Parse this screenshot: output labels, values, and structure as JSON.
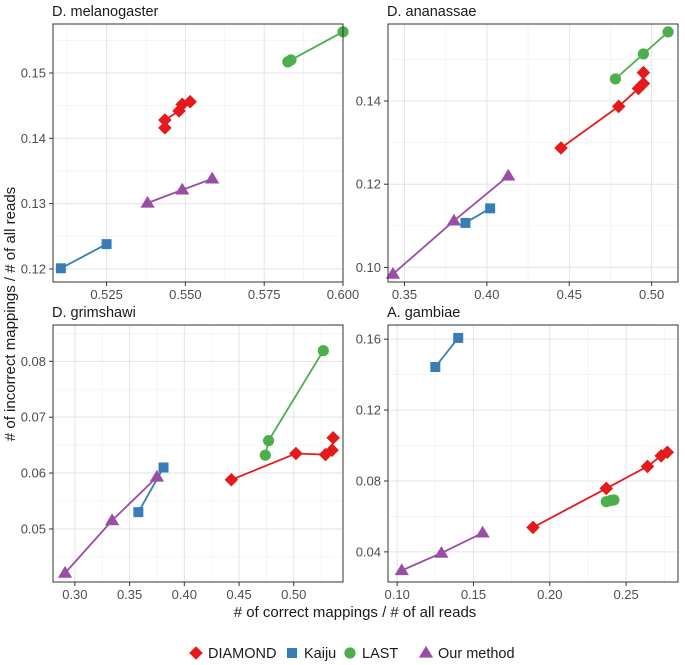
{
  "figure": {
    "x_axis_label": "# of correct mappings / # of all reads",
    "y_axis_label": "# of incorrect mappings / # of all reads"
  },
  "legend": {
    "position": "bottom",
    "items": [
      {
        "label": "DIAMOND",
        "marker": "diamond",
        "color": "#e41a1c"
      },
      {
        "label": "Kaiju",
        "marker": "square",
        "color": "#377eb8"
      },
      {
        "label": "LAST",
        "marker": "circle",
        "color": "#4daf4a"
      },
      {
        "label": "Our method",
        "marker": "triangle",
        "color": "#984ea3"
      }
    ]
  },
  "chart_data": [
    {
      "type": "scatter",
      "title": "D. melanogaster",
      "xlim": [
        0.508,
        0.6
      ],
      "ylim": [
        0.118,
        0.1575
      ],
      "xticks": [
        0.525,
        0.55,
        0.575,
        0.6
      ],
      "xtick_labels": [
        "0.525",
        "0.550",
        "0.575",
        "0.600"
      ],
      "yticks": [
        0.12,
        0.13,
        0.14,
        0.15
      ],
      "ytick_labels": [
        "0.12",
        "0.13",
        "0.14",
        "0.15"
      ],
      "series": [
        {
          "name": "DIAMOND",
          "points": [
            [
              0.5435,
              0.1416
            ],
            [
              0.5435,
              0.1428
            ],
            [
              0.548,
              0.1442
            ],
            [
              0.549,
              0.1452
            ],
            [
              0.5515,
              0.1456
            ]
          ]
        },
        {
          "name": "Kaiju",
          "points": [
            [
              0.5105,
              0.1201
            ],
            [
              0.525,
              0.1238
            ]
          ]
        },
        {
          "name": "LAST",
          "points": [
            [
              0.5825,
              0.1517
            ],
            [
              0.5835,
              0.152
            ],
            [
              0.6,
              0.1563
            ]
          ]
        },
        {
          "name": "Our method",
          "points": [
            [
              0.538,
              0.1301
            ],
            [
              0.549,
              0.1321
            ],
            [
              0.5585,
              0.1338
            ]
          ]
        }
      ]
    },
    {
      "type": "scatter",
      "title": "D. ananassae",
      "xlim": [
        0.34,
        0.516
      ],
      "ylim": [
        0.0965,
        0.1585
      ],
      "xticks": [
        0.35,
        0.4,
        0.45,
        0.5
      ],
      "xtick_labels": [
        "0.35",
        "0.40",
        "0.45",
        "0.50"
      ],
      "yticks": [
        0.1,
        0.12,
        0.14
      ],
      "ytick_labels": [
        "0.10",
        "0.12",
        "0.14"
      ],
      "series": [
        {
          "name": "DIAMOND",
          "points": [
            [
              0.445,
              0.1287
            ],
            [
              0.48,
              0.1387
            ],
            [
              0.492,
              0.143
            ],
            [
              0.495,
              0.1442
            ],
            [
              0.495,
              0.1468
            ]
          ]
        },
        {
          "name": "Kaiju",
          "points": [
            [
              0.387,
              0.1107
            ],
            [
              0.402,
              0.1142
            ]
          ]
        },
        {
          "name": "LAST",
          "points": [
            [
              0.478,
              0.1453
            ],
            [
              0.495,
              0.1513
            ],
            [
              0.51,
              0.1566
            ]
          ]
        },
        {
          "name": "Our method",
          "points": [
            [
              0.343,
              0.0984
            ],
            [
              0.38,
              0.1112
            ],
            [
              0.413,
              0.122
            ]
          ]
        }
      ]
    },
    {
      "type": "scatter",
      "title": "D. grimshawi",
      "xlim": [
        0.28,
        0.545
      ],
      "ylim": [
        0.0405,
        0.0865
      ],
      "xticks": [
        0.3,
        0.35,
        0.4,
        0.45,
        0.5
      ],
      "xtick_labels": [
        "0.30",
        "0.35",
        "0.40",
        "0.45",
        "0.50"
      ],
      "yticks": [
        0.05,
        0.06,
        0.07,
        0.08
      ],
      "ytick_labels": [
        "0.05",
        "0.06",
        "0.07",
        "0.08"
      ],
      "series": [
        {
          "name": "DIAMOND",
          "points": [
            [
              0.443,
              0.0588
            ],
            [
              0.502,
              0.0635
            ],
            [
              0.529,
              0.0633
            ],
            [
              0.535,
              0.0641
            ],
            [
              0.536,
              0.0663
            ]
          ]
        },
        {
          "name": "Kaiju",
          "points": [
            [
              0.358,
              0.053
            ],
            [
              0.381,
              0.061
            ]
          ]
        },
        {
          "name": "LAST",
          "points": [
            [
              0.474,
              0.0632
            ],
            [
              0.477,
              0.0658
            ],
            [
              0.527,
              0.0819
            ]
          ]
        },
        {
          "name": "Our method",
          "points": [
            [
              0.291,
              0.0421
            ],
            [
              0.334,
              0.0515
            ],
            [
              0.375,
              0.0593
            ]
          ]
        }
      ]
    },
    {
      "type": "scatter",
      "title": "A. gambiae",
      "xlim": [
        0.094,
        0.284
      ],
      "ylim": [
        0.023,
        0.168
      ],
      "xticks": [
        0.1,
        0.15,
        0.2,
        0.25
      ],
      "xtick_labels": [
        "0.10",
        "0.15",
        "0.20",
        "0.25"
      ],
      "yticks": [
        0.04,
        0.08,
        0.12,
        0.16
      ],
      "ytick_labels": [
        "0.04",
        "0.08",
        "0.12",
        "0.16"
      ],
      "series": [
        {
          "name": "DIAMOND",
          "points": [
            [
              0.189,
              0.0538
            ],
            [
              0.237,
              0.0758
            ],
            [
              0.264,
              0.0882
            ],
            [
              0.273,
              0.0942
            ],
            [
              0.277,
              0.0962
            ]
          ]
        },
        {
          "name": "Kaiju",
          "points": [
            [
              0.125,
              0.1443
            ],
            [
              0.14,
              0.1607
            ]
          ]
        },
        {
          "name": "LAST",
          "points": [
            [
              0.237,
              0.0683
            ],
            [
              0.24,
              0.069
            ],
            [
              0.242,
              0.0693
            ]
          ]
        },
        {
          "name": "Our method",
          "points": [
            [
              0.103,
              0.0295
            ],
            [
              0.129,
              0.0393
            ],
            [
              0.156,
              0.0507
            ]
          ]
        }
      ]
    }
  ]
}
